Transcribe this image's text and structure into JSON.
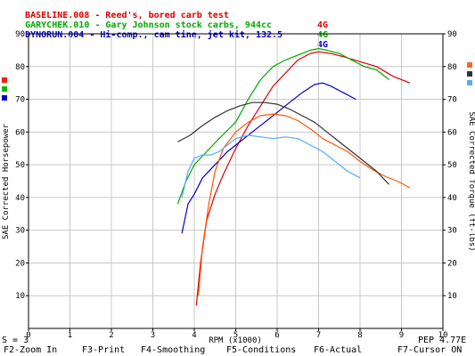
{
  "header": [
    {
      "label": "BASELINE.008 - Reed's, bored carb test",
      "gear": "4G",
      "color": "#dd0000"
    },
    {
      "label": "GARYCHEK.010 - Gary Johnson stock carbs, 944cc",
      "gear": "4G",
      "color": "#00aa00"
    },
    {
      "label": "DYNORUN.004 - Hi-comp., cam tine, jet kit, 132.5",
      "gear": "4G",
      "color": "#0000cc"
    }
  ],
  "status": {
    "left": "S = 3",
    "right": "PEP 4.77E"
  },
  "function_keys": [
    "F2-Zoom In",
    "F3-Print",
    "F4-Smoothing",
    "F5-Conditions",
    "F6-Actual",
    "F7-Cursor ON"
  ],
  "legend_squares_left": [
    "#ee2200",
    "#00bb00",
    "#0000cc"
  ],
  "legend_squares_right": [
    "#ff6622",
    "#333333",
    "#55aaff"
  ],
  "chart_data": {
    "type": "line",
    "xlabel": "RPM (x1000)",
    "ylabel_left": "SAE Corrected Horsepower",
    "ylabel_right": "SAE Corrected Torque (ft-lbs)",
    "xlim": [
      0,
      10
    ],
    "ylim": [
      0,
      90
    ],
    "x_ticks": [
      "0",
      "1",
      "2",
      "3",
      "4",
      "5",
      "6",
      "7",
      "8",
      "9",
      "10"
    ],
    "y_ticks": [
      "10",
      "20",
      "30",
      "40",
      "50",
      "60",
      "70",
      "80",
      "90"
    ],
    "y_ticks_right": [
      "10",
      "20",
      "30",
      "40",
      "50",
      "60",
      "70",
      "80",
      "90"
    ],
    "series": [
      {
        "kind": "horsepower",
        "color": "#dd0000",
        "x": [
          4.05,
          4.15,
          4.3,
          4.5,
          4.7,
          5.0,
          5.3,
          5.6,
          5.9,
          6.2,
          6.5,
          6.8,
          7.0,
          7.3,
          7.6,
          8.0,
          8.4,
          8.8,
          9.2
        ],
        "y": [
          7,
          20,
          33,
          41,
          47,
          55,
          62,
          68,
          74,
          78,
          82,
          84,
          84.5,
          84,
          83,
          81.5,
          80,
          77,
          75
        ]
      },
      {
        "kind": "horsepower",
        "color": "#00aa00",
        "x": [
          3.6,
          3.8,
          4.0,
          4.3,
          4.6,
          5.0,
          5.3,
          5.6,
          5.9,
          6.2,
          6.5,
          6.8,
          7.0,
          7.2,
          7.5,
          7.8,
          8.1,
          8.4,
          8.7
        ],
        "y": [
          38,
          45,
          50,
          54,
          58,
          63,
          70,
          76,
          80,
          82,
          83.5,
          85,
          85.5,
          85,
          84,
          82,
          80,
          79,
          76
        ]
      },
      {
        "kind": "horsepower",
        "color": "#0000cc",
        "x": [
          3.7,
          3.85,
          4.0,
          4.2,
          4.5,
          4.8,
          5.1,
          5.4,
          5.7,
          6.0,
          6.3,
          6.6,
          6.9,
          7.1,
          7.3,
          7.6,
          7.9
        ],
        "y": [
          29,
          38,
          41,
          46,
          50,
          54,
          57,
          60,
          63,
          66,
          69,
          72,
          74.5,
          75,
          74,
          72,
          70
        ]
      },
      {
        "kind": "torque",
        "color": "#ff5500",
        "x": [
          4.1,
          4.2,
          4.35,
          4.5,
          4.7,
          5.0,
          5.3,
          5.6,
          5.9,
          6.2,
          6.5,
          6.8,
          7.1,
          7.4,
          7.7,
          8.0,
          8.3,
          8.6,
          8.9,
          9.2
        ],
        "y": [
          10,
          25,
          38,
          48,
          55,
          60,
          63,
          65,
          65.5,
          65,
          63.5,
          61,
          58,
          56,
          54,
          51,
          48.5,
          46.5,
          45,
          43
        ]
      },
      {
        "kind": "torque",
        "color": "#333333",
        "x": [
          3.6,
          3.9,
          4.2,
          4.5,
          4.8,
          5.1,
          5.4,
          5.7,
          6.0,
          6.3,
          6.6,
          6.9,
          7.2,
          7.5,
          7.8,
          8.1,
          8.4,
          8.7
        ],
        "y": [
          57,
          59,
          62,
          64.5,
          66.5,
          68,
          69,
          69,
          68.5,
          67,
          65,
          63,
          60,
          57,
          54,
          51,
          48,
          44
        ]
      },
      {
        "kind": "torque",
        "color": "#55aaff",
        "x": [
          3.7,
          3.85,
          4.0,
          4.2,
          4.4,
          4.6,
          4.8,
          5.0,
          5.3,
          5.6,
          5.9,
          6.2,
          6.5,
          6.8,
          7.1,
          7.4,
          7.7,
          8.0
        ],
        "y": [
          40,
          48,
          52,
          53,
          53,
          54,
          56,
          58,
          59,
          58.5,
          58,
          58.5,
          58,
          56,
          54,
          51,
          48,
          46
        ]
      }
    ]
  }
}
